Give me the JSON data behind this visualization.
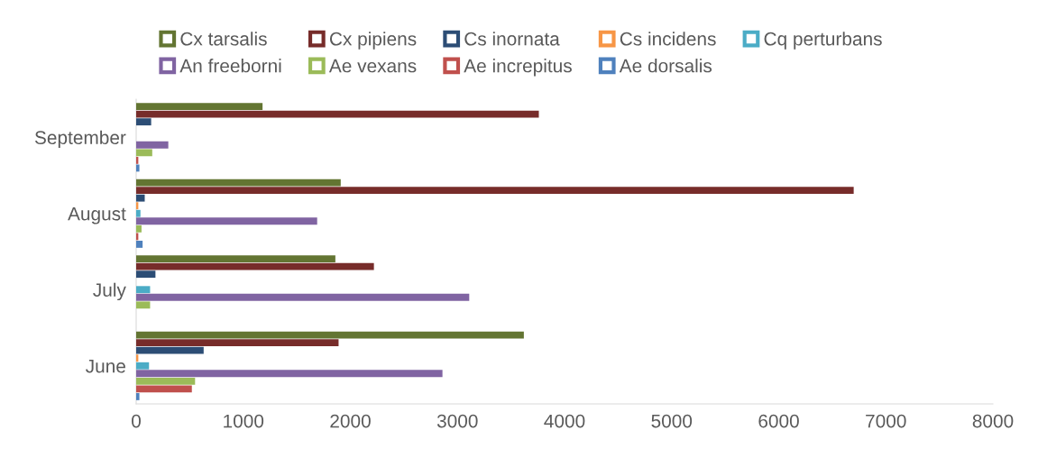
{
  "chart_data": {
    "type": "bar",
    "orientation": "horizontal",
    "categories": [
      "September",
      "August",
      "July",
      "June"
    ],
    "xlim": [
      0,
      8000
    ],
    "xticks": [
      0,
      1000,
      2000,
      3000,
      4000,
      5000,
      6000,
      7000,
      8000
    ],
    "grid": false,
    "legend": "top",
    "series": [
      {
        "name": "Cx tarsalis",
        "color": "#637532",
        "values": [
          1180,
          1910,
          1860,
          3620
        ]
      },
      {
        "name": "Cx pipiens",
        "color": "#772c2a",
        "values": [
          3760,
          6700,
          2220,
          1890
        ]
      },
      {
        "name": "Cs inornata",
        "color": "#2c4d75",
        "values": [
          140,
          80,
          180,
          630
        ]
      },
      {
        "name": "Cs incidens",
        "color": "#f79646",
        "values": [
          null,
          20,
          null,
          20
        ]
      },
      {
        "name": "Cq perturbans",
        "color": "#4bacc6",
        "values": [
          null,
          40,
          130,
          120
        ]
      },
      {
        "name": "An freeborni",
        "color": "#8064a2",
        "values": [
          300,
          1690,
          3110,
          2860
        ]
      },
      {
        "name": "Ae vexans",
        "color": "#9bbb59",
        "values": [
          150,
          50,
          130,
          550
        ]
      },
      {
        "name": "Ae increpitus",
        "color": "#c0504d",
        "values": [
          20,
          20,
          null,
          520
        ]
      },
      {
        "name": "Ae dorsalis",
        "color": "#4f81bd",
        "values": [
          30,
          60,
          null,
          30
        ]
      }
    ]
  }
}
